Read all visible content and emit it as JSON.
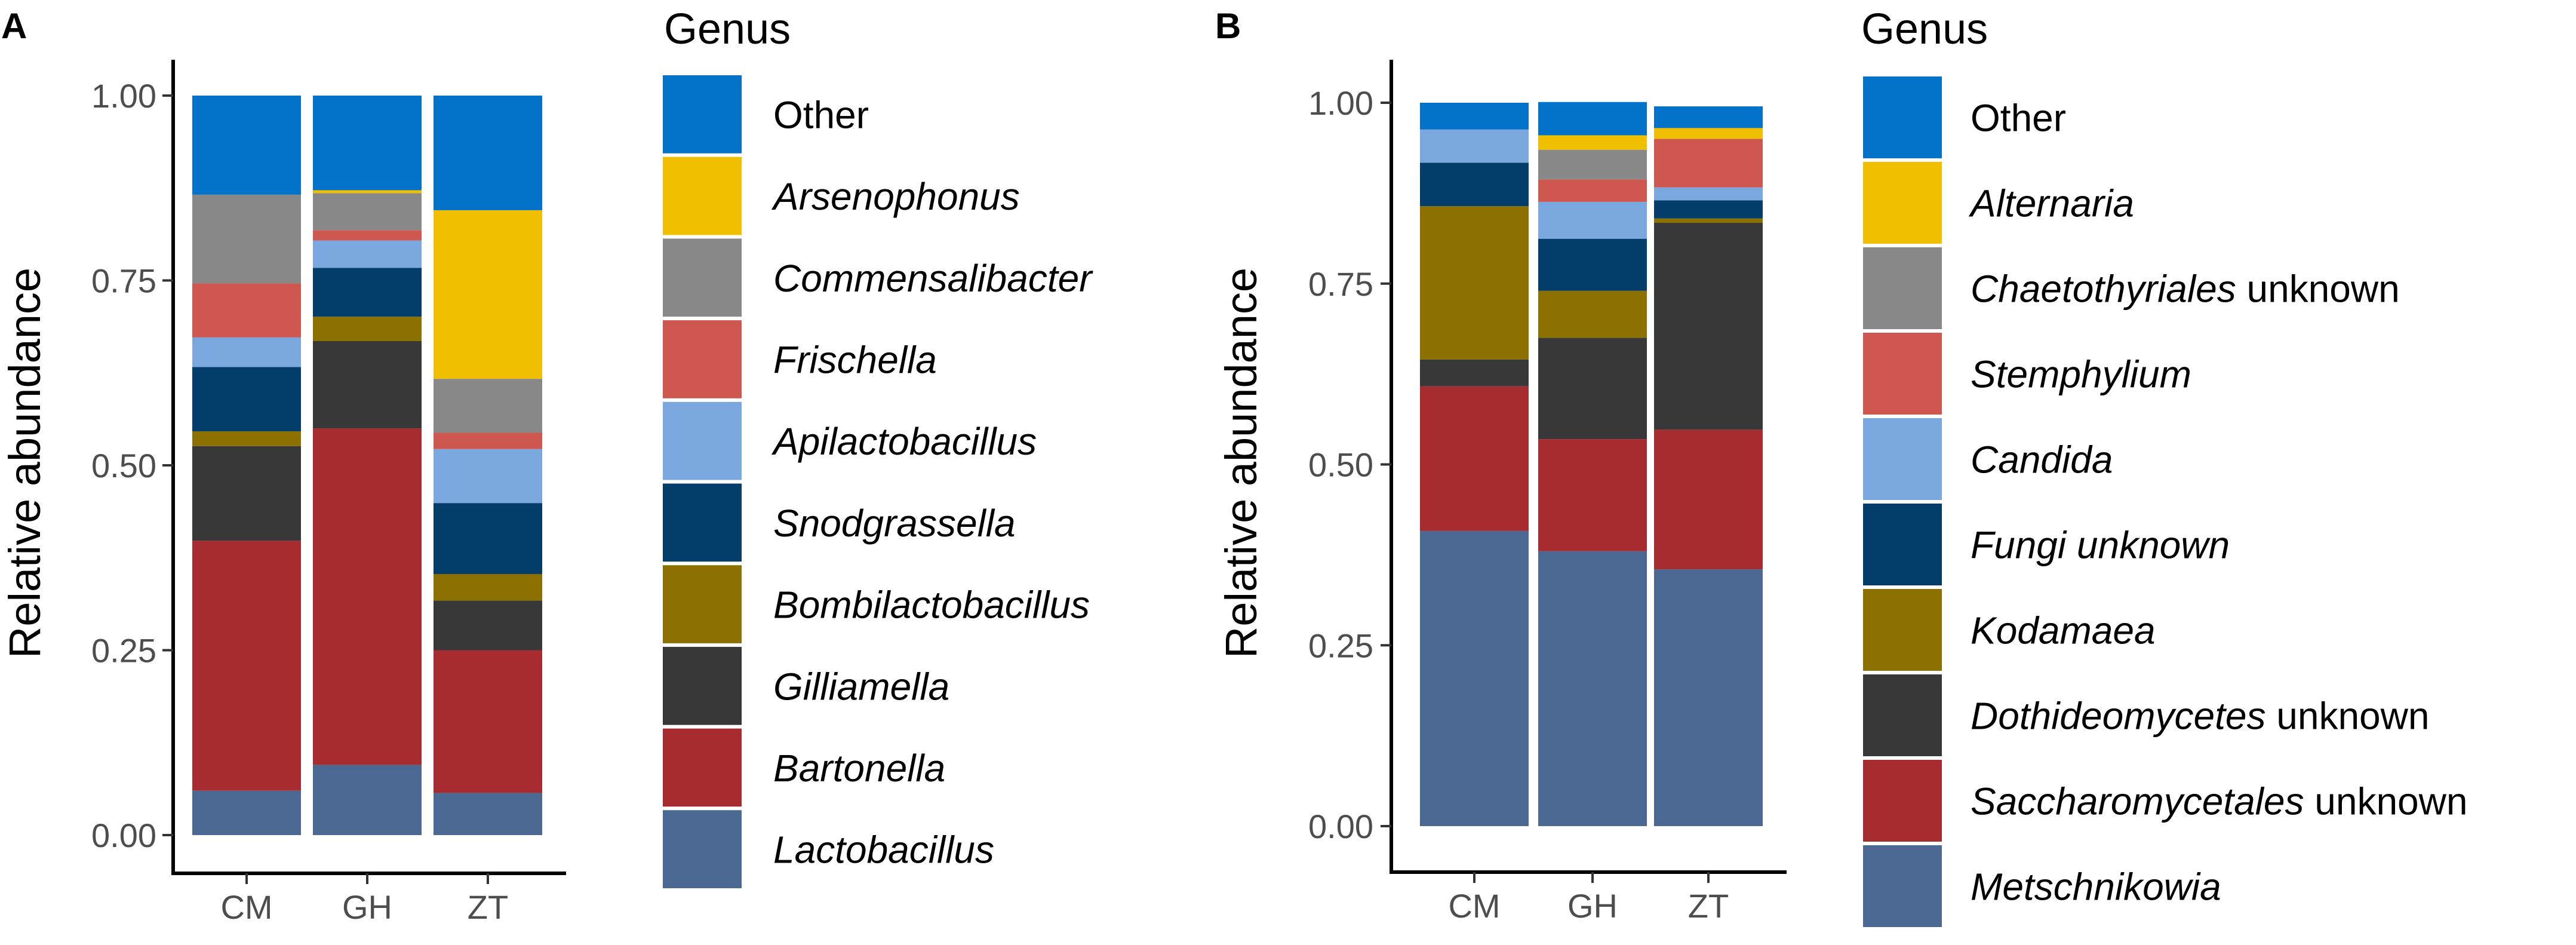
{
  "chart_data": [
    {
      "panel": "A",
      "type": "bar",
      "stacked": true,
      "title": "",
      "xlabel": "",
      "ylabel": "Relative abundance",
      "ylim": [
        0,
        1
      ],
      "yticks": [
        "0.00",
        "0.25",
        "0.50",
        "0.75",
        "1.00"
      ],
      "categories": [
        "CM",
        "GH",
        "ZT"
      ],
      "legend_title": "Genus",
      "legend_position": "right",
      "series": [
        {
          "name": "Lactobacillus",
          "italic": true,
          "suffix": "",
          "color": "#4a6891",
          "values": [
            0.06,
            0.095,
            0.057
          ]
        },
        {
          "name": "Bartonella",
          "italic": true,
          "suffix": "",
          "color": "#a72c30",
          "values": [
            0.338,
            0.455,
            0.193
          ]
        },
        {
          "name": "Gilliamella",
          "italic": true,
          "suffix": "",
          "color": "#383838",
          "values": [
            0.128,
            0.118,
            0.067
          ]
        },
        {
          "name": "Bombilactobacillus",
          "italic": true,
          "suffix": "",
          "color": "#8c7100",
          "values": [
            0.02,
            0.033,
            0.036
          ]
        },
        {
          "name": "Snodgrassella",
          "italic": true,
          "suffix": "",
          "color": "#033e6b",
          "values": [
            0.087,
            0.066,
            0.096
          ]
        },
        {
          "name": "Apilactobacillus",
          "italic": true,
          "suffix": "",
          "color": "#7ba7df",
          "values": [
            0.04,
            0.037,
            0.073
          ]
        },
        {
          "name": "Frischella",
          "italic": true,
          "suffix": "",
          "color": "#ce5750",
          "values": [
            0.073,
            0.014,
            0.022
          ]
        },
        {
          "name": "Commensalibacter",
          "italic": true,
          "suffix": "",
          "color": "#888888",
          "values": [
            0.12,
            0.05,
            0.073
          ]
        },
        {
          "name": "Arsenophonus",
          "italic": true,
          "suffix": "",
          "color": "#f0c000",
          "values": [
            0.0,
            0.004,
            0.228
          ]
        },
        {
          "name": "Other",
          "italic": false,
          "suffix": "",
          "color": "#0273c9",
          "values": [
            0.134,
            0.128,
            0.155
          ]
        }
      ]
    },
    {
      "panel": "B",
      "type": "bar",
      "stacked": true,
      "title": "",
      "xlabel": "",
      "ylabel": "Relative abundance",
      "ylim": [
        0,
        1
      ],
      "yticks": [
        "0.00",
        "0.25",
        "0.50",
        "0.75",
        "1.00"
      ],
      "categories": [
        "CM",
        "GH",
        "ZT"
      ],
      "legend_title": "Genus",
      "legend_position": "right",
      "series": [
        {
          "name": "Metschnikowia",
          "italic": true,
          "suffix": "",
          "color": "#4a6891",
          "values": [
            0.408,
            0.38,
            0.355
          ]
        },
        {
          "name": "Saccharomycetales",
          "italic": true,
          "suffix": " unknown",
          "color": "#a72c30",
          "values": [
            0.2,
            0.155,
            0.193
          ]
        },
        {
          "name": "Dothideomycetes",
          "italic": true,
          "suffix": " unknown",
          "color": "#383838",
          "values": [
            0.037,
            0.14,
            0.286
          ]
        },
        {
          "name": "Kodamaea",
          "italic": true,
          "suffix": "",
          "color": "#8c7100",
          "values": [
            0.212,
            0.065,
            0.006
          ]
        },
        {
          "name": "Fungi unknown",
          "italic": true,
          "suffix": "",
          "color": "#033e6b",
          "values": [
            0.06,
            0.072,
            0.025
          ]
        },
        {
          "name": "Candida",
          "italic": true,
          "suffix": "",
          "color": "#7ba7df",
          "values": [
            0.046,
            0.051,
            0.018
          ]
        },
        {
          "name": "Stemphylium",
          "italic": true,
          "suffix": "",
          "color": "#ce5750",
          "values": [
            0.0,
            0.031,
            0.067
          ]
        },
        {
          "name": "Chaetothyriales",
          "italic": true,
          "suffix": " unknown",
          "color": "#888888",
          "values": [
            0.0,
            0.041,
            0.0
          ]
        },
        {
          "name": "Alternaria",
          "italic": true,
          "suffix": "",
          "color": "#f0c000",
          "values": [
            0.0,
            0.02,
            0.015
          ]
        },
        {
          "name": "Other",
          "italic": false,
          "suffix": "",
          "color": "#0273c9",
          "values": [
            0.037,
            0.046,
            0.03
          ]
        }
      ]
    }
  ]
}
